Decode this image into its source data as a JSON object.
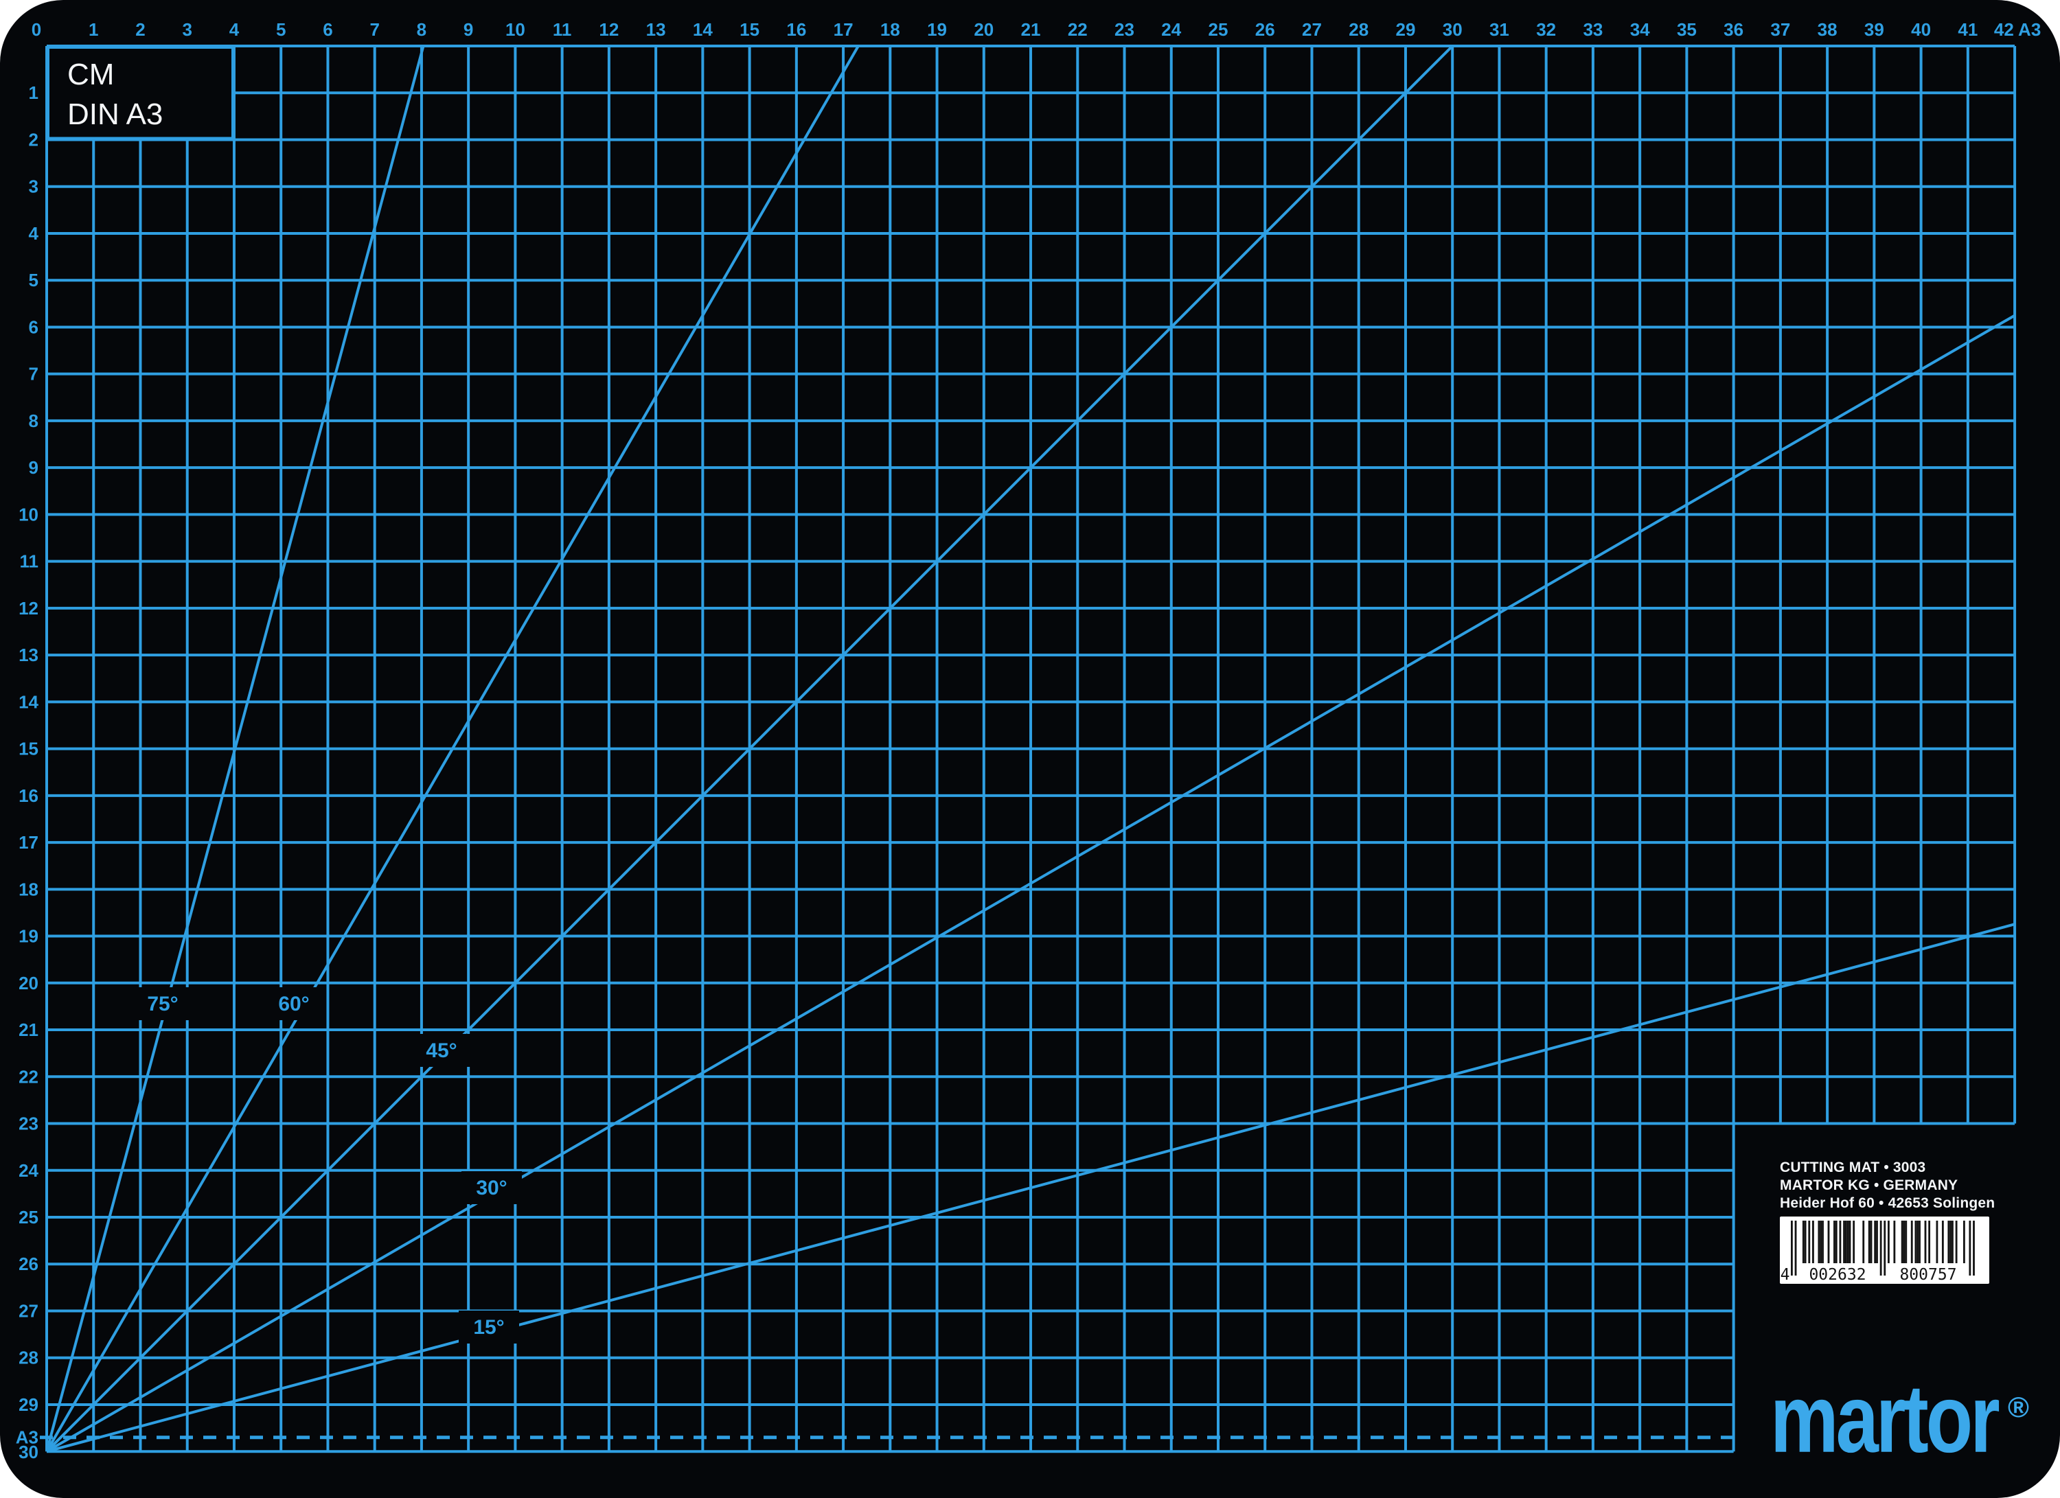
{
  "mat": {
    "unit_label": "CM",
    "size_label": "DIN A3",
    "top_ruler": [
      "0",
      "1",
      "2",
      "3",
      "4",
      "5",
      "6",
      "7",
      "8",
      "9",
      "10",
      "11",
      "12",
      "13",
      "14",
      "15",
      "16",
      "17",
      "18",
      "19",
      "20",
      "21",
      "22",
      "23",
      "24",
      "25",
      "26",
      "27",
      "28",
      "29",
      "30",
      "31",
      "32",
      "33",
      "34",
      "35",
      "36",
      "37",
      "38",
      "39",
      "40",
      "41",
      "42 A3"
    ],
    "left_ruler": [
      "1",
      "2",
      "3",
      "4",
      "5",
      "6",
      "7",
      "8",
      "9",
      "10",
      "11",
      "12",
      "13",
      "14",
      "15",
      "16",
      "17",
      "18",
      "19",
      "20",
      "21",
      "22",
      "23",
      "24",
      "25",
      "26",
      "27",
      "28",
      "29"
    ],
    "a3_row_label": "A3",
    "bottom_row_label": "30",
    "angles": [
      {
        "label": "75°",
        "degrees": 75
      },
      {
        "label": "60°",
        "degrees": 60
      },
      {
        "label": "45°",
        "degrees": 45
      },
      {
        "label": "30°",
        "degrees": 30
      },
      {
        "label": "15°",
        "degrees": 15
      }
    ],
    "colors": {
      "grid_blue": "#2f9fe2",
      "mat_black": "#05070a",
      "white": "#f4f6f8",
      "logo_blue": "#3ba8ea",
      "barcode_bg": "#ffffff",
      "barcode_bar": "#141414"
    }
  },
  "info_block": {
    "line1": "CUTTING MAT • 3003",
    "line2": "MARTOR KG • GERMANY",
    "line3": "Heider Hof 60 • 42653 Solingen"
  },
  "barcode": {
    "value": "4 002632 800757",
    "modules": "10100011010100111001001101011110100001001101101010100100011100101110010100010010011101000100101"
  },
  "logo": {
    "text": "martor",
    "registered": "®"
  }
}
